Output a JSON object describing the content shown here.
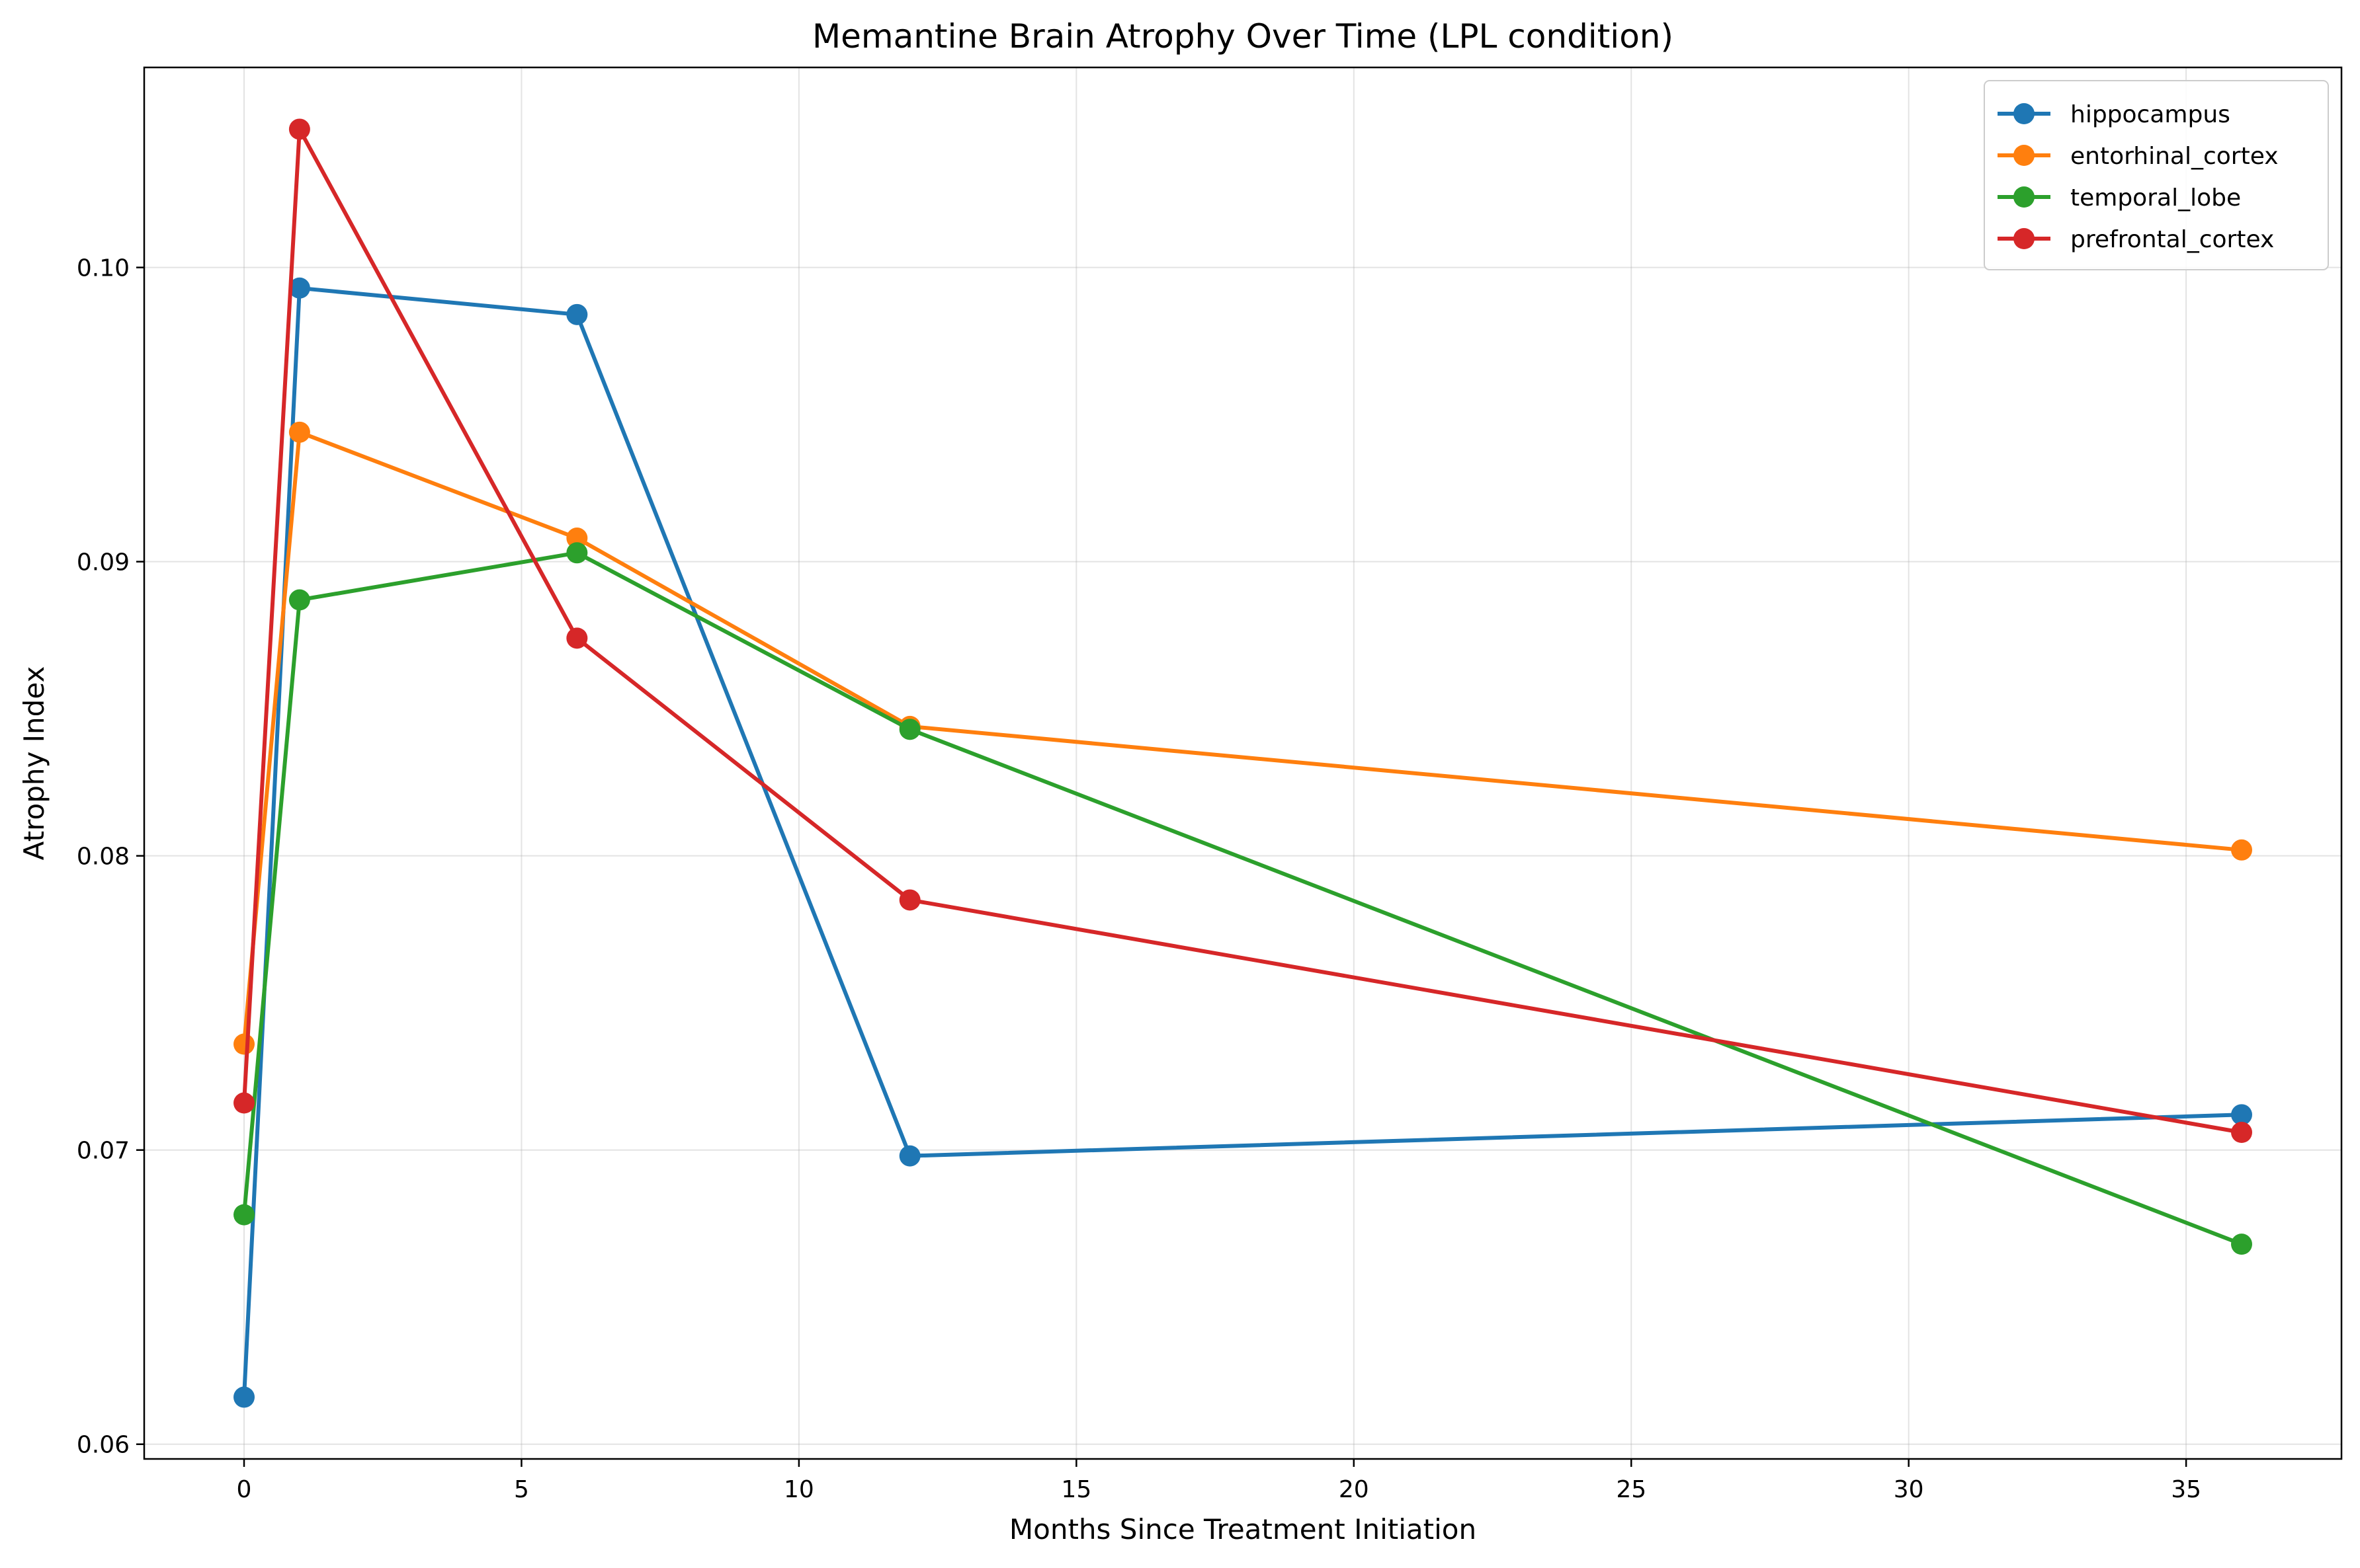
{
  "chart_data": {
    "type": "line",
    "title": "Memantine Brain Atrophy Over Time (LPL condition)",
    "xlabel": "Months Since Treatment Initiation",
    "ylabel": "Atrophy Index",
    "x": [
      0,
      1,
      6,
      12,
      36
    ],
    "xlim": [
      -1.8,
      37.8
    ],
    "ylim": [
      0.0595,
      0.1068
    ],
    "xticks": [
      0,
      5,
      10,
      15,
      20,
      25,
      30,
      35
    ],
    "xtick_labels": [
      "0",
      "5",
      "10",
      "15",
      "20",
      "25",
      "30",
      "35"
    ],
    "yticks": [
      0.06,
      0.07,
      0.08,
      0.09,
      0.1
    ],
    "ytick_labels": [
      "0.06",
      "0.07",
      "0.08",
      "0.09",
      "0.10"
    ],
    "grid": true,
    "legend_position": "top-right",
    "series": [
      {
        "name": "hippocampus",
        "color": "#1f77b4",
        "values": [
          0.0616,
          0.0993,
          0.0984,
          0.0698,
          0.0712
        ]
      },
      {
        "name": "entorhinal_cortex",
        "color": "#ff7f0e",
        "values": [
          0.0736,
          0.0944,
          0.0908,
          0.0844,
          0.0802
        ]
      },
      {
        "name": "temporal_lobe",
        "color": "#2ca02c",
        "values": [
          0.0678,
          0.0887,
          0.0903,
          0.0843,
          0.0668
        ]
      },
      {
        "name": "prefrontal_cortex",
        "color": "#d62728",
        "values": [
          0.0716,
          0.1047,
          0.0874,
          0.0785,
          0.0706
        ]
      }
    ]
  }
}
